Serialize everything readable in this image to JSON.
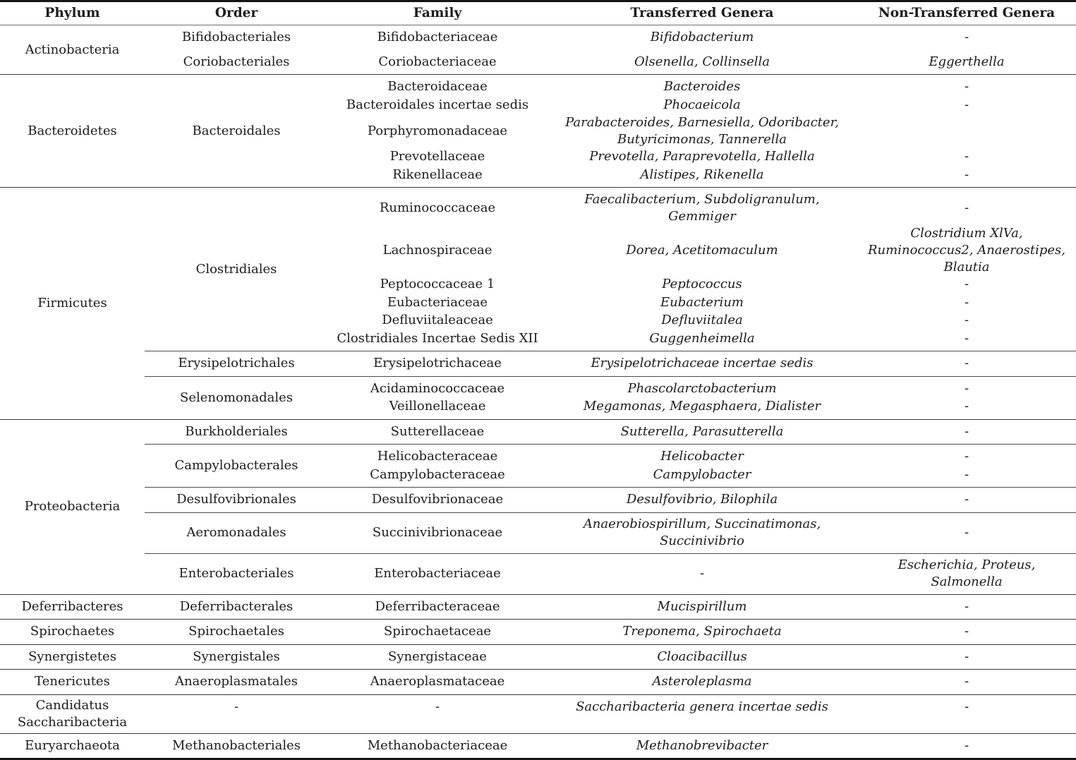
{
  "colors": {
    "text": "#1c1c1c",
    "rule_heavy": "#141414",
    "rule_header": "#6f6f6f",
    "rule_section": "#3b3b3b",
    "rule_group": "#4c4c4c",
    "background": "#ffffff"
  },
  "table": {
    "headers": [
      "Phylum",
      "Order",
      "Family",
      "Transferred Genera",
      "Non-Transferred Genera"
    ],
    "sections": [
      {
        "phylum": "Actinobacteria",
        "group_dividers": false,
        "groups": [
          {
            "order": "Bifidobacteriales",
            "rows": [
              {
                "family": "Bifidobacteriaceae",
                "transferred": "Bifidobacterium",
                "non_transferred": "-"
              }
            ]
          },
          {
            "order": "Coriobacteriales",
            "rows": [
              {
                "family": "Coriobacteriaceae",
                "transferred": "Olsenella, Collinsella",
                "non_transferred": "Eggerthella"
              }
            ]
          }
        ]
      },
      {
        "phylum": "Bacteroidetes",
        "group_dividers": false,
        "groups": [
          {
            "order": "Bacteroidales",
            "rows": [
              {
                "family": "Bacteroidaceae",
                "transferred": "Bacteroides",
                "non_transferred": "-"
              },
              {
                "family": "Bacteroidales incertae sedis",
                "transferred": "Phocaeicola",
                "non_transferred": "-"
              },
              {
                "family": "Porphyromonadaceae",
                "transferred": "Parabacteroides, Barnesiella, Odoribacter, Butyricimonas, Tannerella",
                "non_transferred": ""
              },
              {
                "family": "Prevotellaceae",
                "transferred": "Prevotella, Paraprevotella, Hallella",
                "non_transferred": "-"
              },
              {
                "family": "Rikenellaceae",
                "transferred": "Alistipes, Rikenella",
                "non_transferred": "-"
              }
            ]
          }
        ]
      },
      {
        "phylum": "Firmicutes",
        "group_dividers": true,
        "groups": [
          {
            "order": "Clostridiales",
            "rows": [
              {
                "family": "Ruminococcaceae",
                "transferred": "Faecalibacterium, Subdoligranulum, Gemmiger",
                "non_transferred": "-"
              },
              {
                "family": "Lachnospiraceae",
                "transferred": "Dorea, Acetitomaculum",
                "non_transferred": "Clostridium XlVa, Ruminococcus2, Anaerostipes, Blautia"
              },
              {
                "family": "Peptococcaceae 1",
                "transferred": "Peptococcus",
                "non_transferred": "-"
              },
              {
                "family": "Eubacteriaceae",
                "transferred": "Eubacterium",
                "non_transferred": "-"
              },
              {
                "family": "Defluviitaleaceae",
                "transferred": "Defluviitalea",
                "non_transferred": "-"
              },
              {
                "family": "Clostridiales Incertae Sedis XII",
                "transferred": "Guggenheimella",
                "non_transferred": "-"
              }
            ]
          },
          {
            "order": "Erysipelotrichales",
            "rows": [
              {
                "family": "Erysipelotrichaceae",
                "transferred": "Erysipelotrichaceae incertae sedis",
                "non_transferred": "-"
              }
            ]
          },
          {
            "order": "Selenomonadales",
            "rows": [
              {
                "family": "Acidaminococcaceae",
                "transferred": "Phascolarctobacterium",
                "non_transferred": "-"
              },
              {
                "family": "Veillonellaceae",
                "transferred": "Megamonas, Megasphaera, Dialister",
                "non_transferred": "-"
              }
            ]
          }
        ]
      },
      {
        "phylum": "Proteobacteria",
        "group_dividers": true,
        "groups": [
          {
            "order": "Burkholderiales",
            "rows": [
              {
                "family": "Sutterellaceae",
                "transferred": "Sutterella, Parasutterella",
                "non_transferred": "-"
              }
            ]
          },
          {
            "order": "Campylobacterales",
            "rows": [
              {
                "family": "Helicobacteraceae",
                "transferred": "Helicobacter",
                "non_transferred": "-"
              },
              {
                "family": "Campylobacteraceae",
                "transferred": "Campylobacter",
                "non_transferred": "-"
              }
            ]
          },
          {
            "order": "Desulfovibrionales",
            "rows": [
              {
                "family": "Desulfovibrionaceae",
                "transferred": "Desulfovibrio, Bilophila",
                "non_transferred": "-"
              }
            ]
          },
          {
            "order": "Aeromonadales",
            "rows": [
              {
                "family": "Succinivibrionaceae",
                "transferred": "Anaerobiospirillum, Succinatimonas, Succinivibrio",
                "non_transferred": "-"
              }
            ]
          },
          {
            "order": "Enterobacteriales",
            "rows": [
              {
                "family": "Enterobacteriaceae",
                "transferred": "-",
                "non_transferred": "Escherichia, Proteus, Salmonella"
              }
            ]
          }
        ]
      },
      {
        "phylum": "Deferribacteres",
        "group_dividers": false,
        "groups": [
          {
            "order": "Deferribacterales",
            "rows": [
              {
                "family": "Deferribacteraceae",
                "transferred": "Mucispirillum",
                "non_transferred": "-"
              }
            ]
          }
        ]
      },
      {
        "phylum": "Spirochaetes",
        "group_dividers": false,
        "groups": [
          {
            "order": "Spirochaetales",
            "rows": [
              {
                "family": "Spirochaetaceae",
                "transferred": "Treponema, Spirochaeta",
                "non_transferred": "-"
              }
            ]
          }
        ]
      },
      {
        "phylum": "Synergistetes",
        "group_dividers": false,
        "groups": [
          {
            "order": "Synergistales",
            "rows": [
              {
                "family": "Synergistaceae",
                "transferred": "Cloacibacillus",
                "non_transferred": "-"
              }
            ]
          }
        ]
      },
      {
        "phylum": "Tenericutes",
        "group_dividers": false,
        "groups": [
          {
            "order": "Anaeroplasmatales",
            "rows": [
              {
                "family": "Anaeroplasmataceae",
                "transferred": "Asteroleplasma",
                "non_transferred": "-"
              }
            ]
          }
        ]
      },
      {
        "phylum": "Candidatus Saccharibacteria",
        "group_dividers": false,
        "groups": [
          {
            "order": "-",
            "rows": [
              {
                "family": "-",
                "transferred": "Saccharibacteria genera incertae sedis",
                "non_transferred": "-"
              }
            ]
          }
        ]
      },
      {
        "phylum": "Euryarchaeota",
        "group_dividers": false,
        "groups": [
          {
            "order": "Methanobacteriales",
            "rows": [
              {
                "family": "Methanobacteriaceae",
                "transferred": "Methanobrevibacter",
                "non_transferred": "-"
              }
            ]
          }
        ]
      }
    ]
  }
}
